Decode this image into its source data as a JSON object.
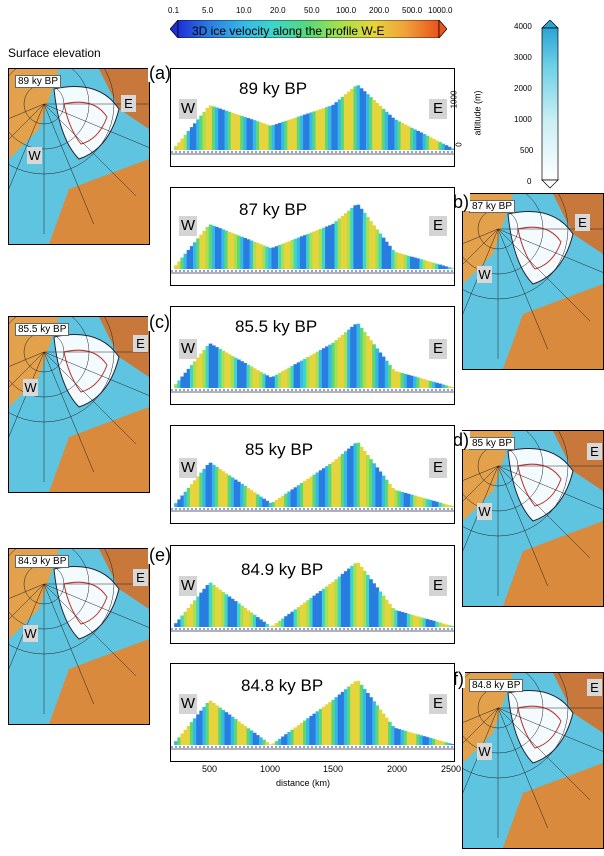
{
  "colorbar_top": {
    "title": "3D ice velocity along the profile W-E",
    "ticks": [
      "0.1",
      "5.0",
      "10.0",
      "20.0",
      "50.0",
      "100.0",
      "200.0",
      "500.0",
      "1000.0"
    ],
    "colors": [
      "#1f2fd6",
      "#2a7de0",
      "#36b8e8",
      "#3fd6c8",
      "#58d878",
      "#a6e04e",
      "#e6d43c",
      "#f0a23a",
      "#e8541c"
    ]
  },
  "colorbar_right": {
    "ticks": [
      "4000",
      "3000",
      "2000",
      "1000",
      "500",
      "0"
    ]
  },
  "left_header": "Surface elevation",
  "panels": [
    {
      "letter": "(a)",
      "title": "89 ky BP",
      "map_label": "89 ky BP"
    },
    {
      "letter": "(b)",
      "title": "87 ky BP",
      "map_label": "87 ky BP"
    },
    {
      "letter": "(c)",
      "title": "85.5 ky BP",
      "map_label": "85.5 ky BP"
    },
    {
      "letter": "(d)",
      "title": "85 ky BP",
      "map_label": "85 ky BP"
    },
    {
      "letter": "(e)",
      "title": "84.9 ky BP",
      "map_label": "84.9 ky BP"
    },
    {
      "letter": "(f)",
      "title": "84.8 ky BP",
      "map_label": "84.8 ky BP"
    }
  ],
  "west_label": "W",
  "east_label": "E",
  "altitude_axis": {
    "label": "altitude (m)",
    "ticks": [
      "1000",
      "0"
    ]
  },
  "distance_axis": {
    "label": "distance (km)",
    "ticks": [
      "500",
      "1000",
      "1500",
      "2000",
      "2500"
    ]
  },
  "chart_data": {
    "type": "area",
    "xlabel": "distance (km)",
    "ylabel": "altitude (m)",
    "x": [
      200,
      500,
      1000,
      1500,
      1700,
      2000,
      2500
    ],
    "series": [
      {
        "name": "89 ky BP",
        "values": [
          0,
          1300,
          700,
          1300,
          1900,
          900,
          0
        ]
      },
      {
        "name": "87 ky BP",
        "values": [
          0,
          1300,
          600,
          1300,
          1900,
          500,
          0
        ]
      },
      {
        "name": "85.5 ky BP",
        "values": [
          0,
          1300,
          300,
          1300,
          1900,
          500,
          0
        ]
      },
      {
        "name": "85 ky BP",
        "values": [
          0,
          1300,
          100,
          1300,
          1900,
          500,
          0
        ]
      },
      {
        "name": "84.9 ky BP",
        "values": [
          0,
          1300,
          0,
          1300,
          1900,
          500,
          0
        ]
      },
      {
        "name": "84.8 ky BP",
        "values": [
          0,
          1300,
          0,
          1300,
          1900,
          500,
          0
        ]
      }
    ]
  }
}
